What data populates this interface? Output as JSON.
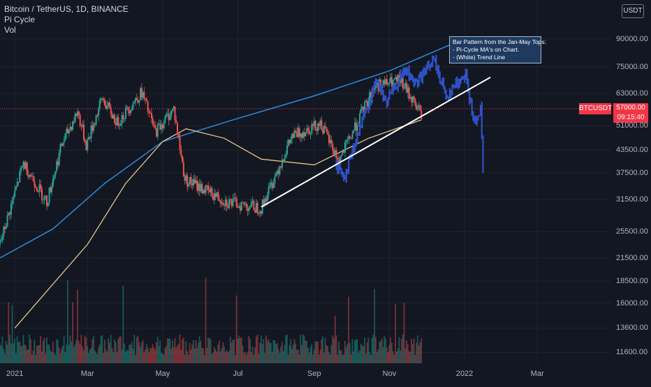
{
  "header": {
    "symbol_line": "Bitcoin / TetherUS, 1D, BINANCE",
    "indicator_1": "Pi Cycle",
    "indicator_2": "Vol",
    "currency_badge": "USDT"
  },
  "annotation": {
    "line1": "Bar Pattern from the Jan-May Tops:",
    "line2": "- Pi-Cycle MA's on Chart.",
    "line3": "- (White) Trend Line"
  },
  "price_marker": {
    "ticker": "BTCUSDT",
    "price": "57000.00",
    "countdown": "09:15:40"
  },
  "colors": {
    "background": "#131722",
    "bull": "#26a69a",
    "bear": "#ef5350",
    "projected_bars": "#2f51c4",
    "ma_blue": "#2d8bd8",
    "ma_yellow": "#e6c78a",
    "trend_line": "#ffffff",
    "price_line": "#f23645"
  },
  "chart_data": {
    "type": "candlestick",
    "title": "Bitcoin / TetherUS, 1D, BINANCE",
    "y_scale": "log",
    "ylim": [
      10800,
      116000
    ],
    "y_ticks": [
      11600,
      13600,
      16000,
      18500,
      21500,
      25500,
      31500,
      37500,
      43500,
      51000,
      63000,
      75000,
      90000
    ],
    "y_tick_labels": [
      "11600.00",
      "13600.00",
      "16000.00",
      "18500.00",
      "21500.00",
      "25500.00",
      "31500.00",
      "37500.00",
      "43500.00",
      "51000.00",
      "63000.00",
      "75000.00",
      "90000.00"
    ],
    "x_ticks": [
      {
        "label": "2021",
        "date": "2021-01-01"
      },
      {
        "label": "Mar",
        "date": "2021-03-01"
      },
      {
        "label": "May",
        "date": "2021-05-01"
      },
      {
        "label": "Jul",
        "date": "2021-07-01"
      },
      {
        "label": "Sep",
        "date": "2021-09-01"
      },
      {
        "label": "Nov",
        "date": "2021-11-01"
      },
      {
        "label": "2022",
        "date": "2022-01-01"
      },
      {
        "label": "Mar",
        "date": "2022-03-01"
      }
    ],
    "xlim": [
      "2020-12-20",
      "2022-04-30"
    ],
    "current_price": 57000,
    "price_path": [
      [
        "2020-12-20",
        23500
      ],
      [
        "2021-01-08",
        40000
      ],
      [
        "2021-01-27",
        31000
      ],
      [
        "2021-02-08",
        45000
      ],
      [
        "2021-02-21",
        56000
      ],
      [
        "2021-02-28",
        45000
      ],
      [
        "2021-03-13",
        61000
      ],
      [
        "2021-03-25",
        52000
      ],
      [
        "2021-04-14",
        63500
      ],
      [
        "2021-04-25",
        49000
      ],
      [
        "2021-05-10",
        57000
      ],
      [
        "2021-05-19",
        36000
      ],
      [
        "2021-06-08",
        33000
      ],
      [
        "2021-06-22",
        31000
      ],
      [
        "2021-07-20",
        29800
      ],
      [
        "2021-08-14",
        47500
      ],
      [
        "2021-09-06",
        52000
      ],
      [
        "2021-09-21",
        40500
      ],
      [
        "2021-10-20",
        66000
      ],
      [
        "2021-11-10",
        68500
      ],
      [
        "2021-11-27",
        55000
      ]
    ],
    "projected_path": [
      [
        "2021-09-19",
        39000
      ],
      [
        "2021-09-26",
        37000
      ],
      [
        "2021-10-14",
        57500
      ],
      [
        "2021-10-22",
        69000
      ],
      [
        "2021-10-29",
        59000
      ],
      [
        "2021-11-14",
        73500
      ],
      [
        "2021-11-22",
        67000
      ],
      [
        "2021-12-07",
        78500
      ],
      [
        "2021-12-17",
        62000
      ],
      [
        "2022-01-02",
        72000
      ],
      [
        "2022-01-08",
        52000
      ],
      [
        "2022-01-14",
        57000
      ],
      [
        "2022-01-16",
        37000
      ]
    ],
    "ma_blue": [
      [
        "2020-12-20",
        21500
      ],
      [
        "2021-02-01",
        26000
      ],
      [
        "2021-03-15",
        35000
      ],
      [
        "2021-05-01",
        46000
      ],
      [
        "2021-07-01",
        53500
      ],
      [
        "2021-09-01",
        62000
      ],
      [
        "2021-11-01",
        73000
      ],
      [
        "2021-12-15",
        85000
      ],
      [
        "2022-01-01",
        90000
      ]
    ],
    "ma_yellow": [
      [
        "2021-01-01",
        13600
      ],
      [
        "2021-03-01",
        23500
      ],
      [
        "2021-04-01",
        35000
      ],
      [
        "2021-05-01",
        46000
      ],
      [
        "2021-05-20",
        50000
      ],
      [
        "2021-06-20",
        47000
      ],
      [
        "2021-07-20",
        41000
      ],
      [
        "2021-09-01",
        39500
      ],
      [
        "2021-10-15",
        47000
      ],
      [
        "2021-11-27",
        53000
      ]
    ],
    "trend_line": [
      [
        "2021-07-20",
        30000
      ],
      [
        "2022-01-22",
        70000
      ]
    ],
    "annotation_text": [
      "Bar Pattern from the Jan-May Tops:",
      "- Pi-Cycle MA's on Chart.",
      "- (White) Trend Line"
    ]
  }
}
